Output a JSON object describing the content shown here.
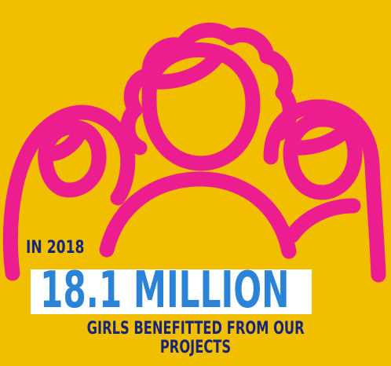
{
  "illustration": {
    "icon": "three-girls-outline-icon",
    "stroke_color": "#ec1d8f",
    "background_color": "#f2bf00"
  },
  "stat": {
    "year_label": "IN 2018",
    "value": "18.1 MILLION",
    "caption_line1": "GIRLS BENEFITTED FROM OUR",
    "caption_line2": "PROJECTS",
    "text_color": "#16257a",
    "value_color": "#2a83d6"
  }
}
